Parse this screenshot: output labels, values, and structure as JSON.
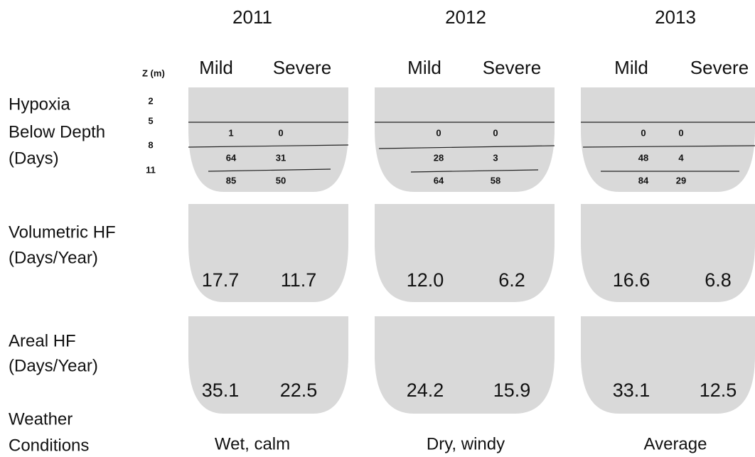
{
  "depth_axis": {
    "label": "Z (m)",
    "depths": [
      2,
      5,
      8,
      11
    ]
  },
  "row_labels": {
    "hypoxia": [
      "Hypoxia",
      "Below Depth",
      "(Days)"
    ],
    "volumetric": [
      "Volumetric HF",
      "(Days/Year)"
    ],
    "areal": [
      "Areal HF",
      "(Days/Year)"
    ],
    "weather": [
      "Weather",
      "Conditions"
    ]
  },
  "panels": [
    {
      "year": "2011",
      "columns": [
        "Mild",
        "Severe"
      ],
      "hypoxia_days": [
        [
          1,
          0
        ],
        [
          64,
          31
        ],
        [
          85,
          50
        ]
      ],
      "volumetric_hf": [
        17.7,
        11.7
      ],
      "areal_hf": [
        35.1,
        22.5
      ],
      "weather": "Wet, calm"
    },
    {
      "year": "2012",
      "columns": [
        "Mild",
        "Severe"
      ],
      "hypoxia_days": [
        [
          0,
          0
        ],
        [
          28,
          3
        ],
        [
          64,
          58
        ]
      ],
      "volumetric_hf": [
        "12.0",
        6.2
      ],
      "areal_hf": [
        24.2,
        15.9
      ],
      "weather": "Dry, windy"
    },
    {
      "year": "2013",
      "columns": [
        "Mild",
        "Severe"
      ],
      "hypoxia_days": [
        [
          0,
          0
        ],
        [
          48,
          4
        ],
        [
          84,
          29
        ]
      ],
      "volumetric_hf": [
        16.6,
        6.8
      ],
      "areal_hf": [
        33.1,
        12.5
      ],
      "weather": "Average"
    }
  ]
}
